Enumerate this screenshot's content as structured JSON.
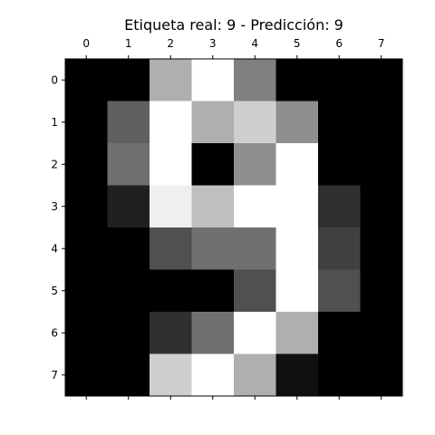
{
  "chart_data": {
    "type": "heatmap",
    "title": "Etiqueta real: 9 - Predicción: 9",
    "colormap": "gray",
    "value_range": [
      0,
      16
    ],
    "x_ticks": [
      "0",
      "1",
      "2",
      "3",
      "4",
      "5",
      "6",
      "7"
    ],
    "y_ticks": [
      "0",
      "1",
      "2",
      "3",
      "4",
      "5",
      "6",
      "7"
    ],
    "x_tick_position": "top",
    "y_tick_position": "left",
    "grid": false,
    "values": [
      [
        0,
        0,
        11,
        16,
        8,
        0,
        0,
        0
      ],
      [
        0,
        6,
        16,
        11,
        13,
        9,
        0,
        0
      ],
      [
        0,
        7,
        16,
        0,
        9,
        16,
        0,
        0
      ],
      [
        0,
        2,
        15,
        12,
        16,
        16,
        3,
        0
      ],
      [
        0,
        0,
        5,
        7,
        7,
        16,
        4,
        0
      ],
      [
        0,
        0,
        0,
        0,
        5,
        16,
        5,
        0
      ],
      [
        0,
        0,
        3,
        7,
        16,
        11,
        0,
        0
      ],
      [
        0,
        0,
        13,
        16,
        11,
        1,
        0,
        0
      ]
    ]
  }
}
